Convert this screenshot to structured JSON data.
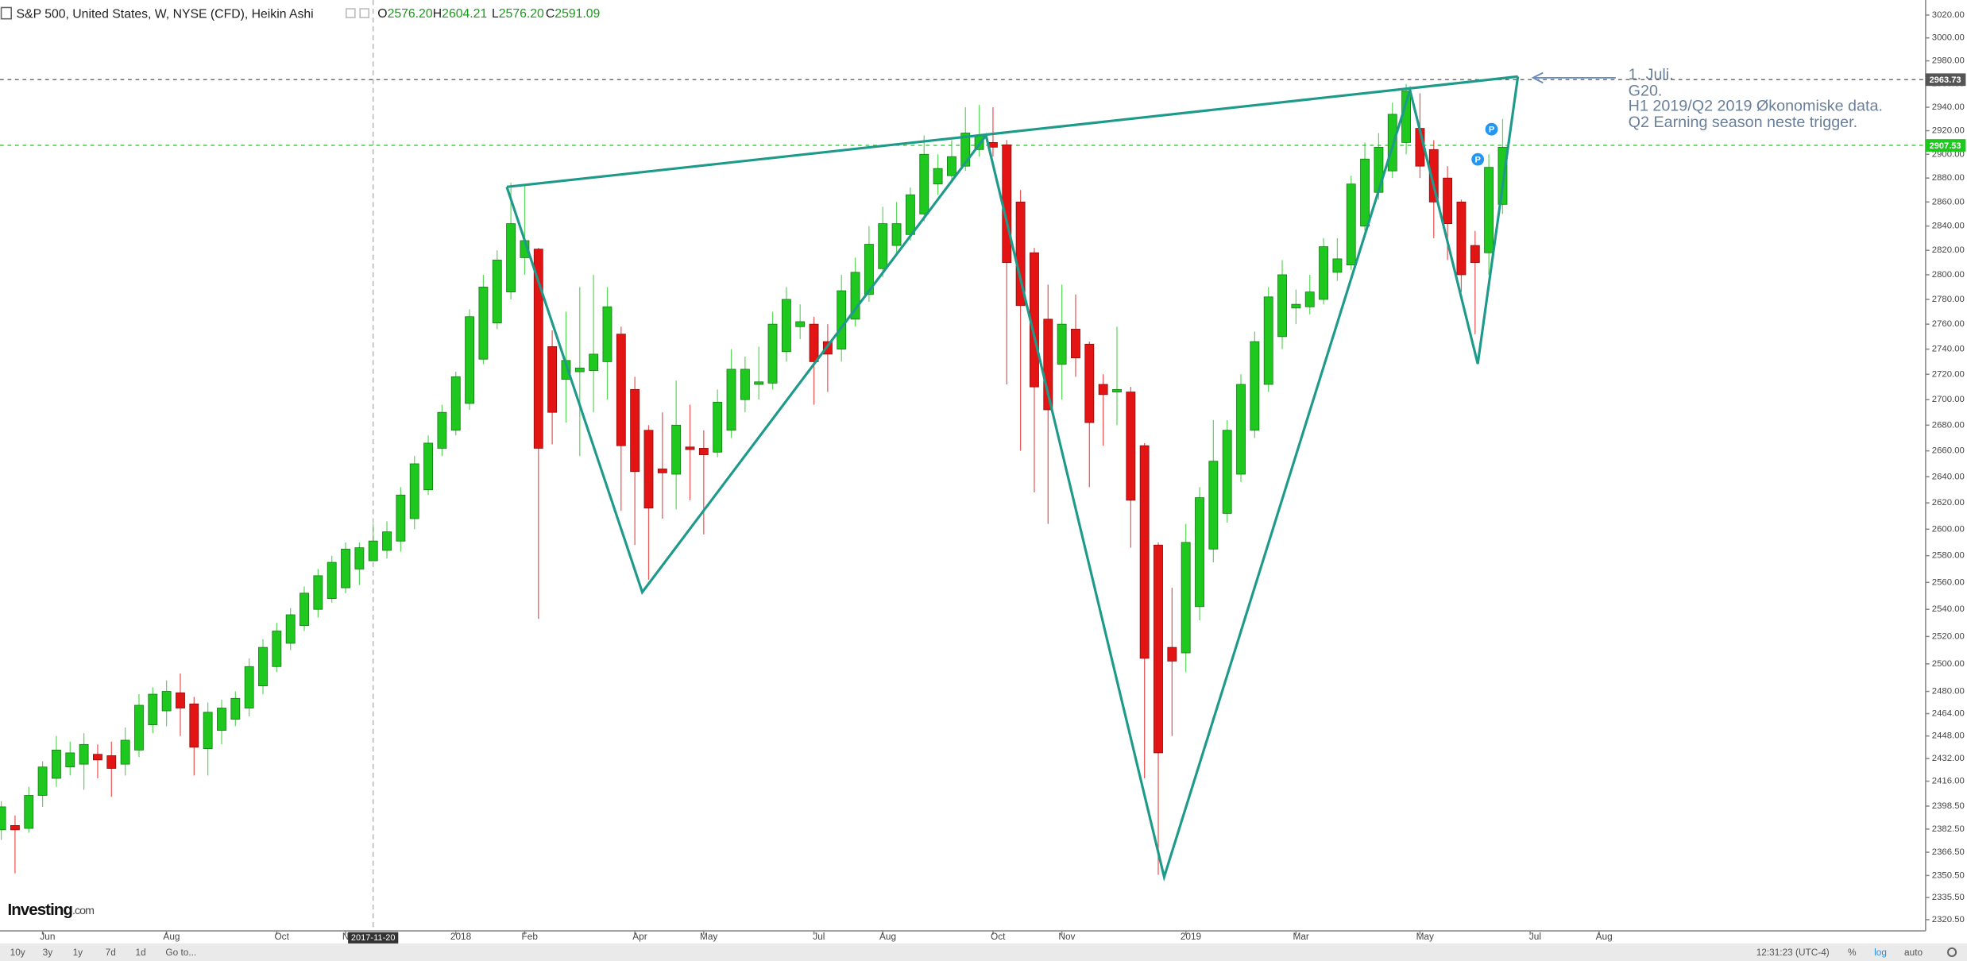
{
  "header": {
    "title": "S&P 500, United States, W, NYSE (CFD), Heikin Ashi",
    "readout": [
      {
        "label": "O",
        "text": "2576.20"
      },
      {
        "label": "H",
        "text": "2604.21"
      },
      {
        "label": "L",
        "text": "2576.20"
      },
      {
        "label": "C",
        "text": "2591.09"
      }
    ]
  },
  "chart_data": {
    "type": "candlestick",
    "log_scale": true,
    "grid": false,
    "up_color": "#1ec81e",
    "down_color": "#e31414",
    "x": [
      "2017-05-15",
      "2017-05-22",
      "2017-05-29",
      "2017-06-05",
      "2017-06-12",
      "2017-06-19",
      "2017-06-26",
      "2017-07-03",
      "2017-07-10",
      "2017-07-17",
      "2017-07-24",
      "2017-07-31",
      "2017-08-07",
      "2017-08-14",
      "2017-08-21",
      "2017-08-28",
      "2017-09-04",
      "2017-09-11",
      "2017-09-18",
      "2017-09-25",
      "2017-10-02",
      "2017-10-09",
      "2017-10-16",
      "2017-10-23",
      "2017-10-30",
      "2017-11-06",
      "2017-11-13",
      "2017-11-20",
      "2017-11-27",
      "2017-12-04",
      "2017-12-11",
      "2017-12-18",
      "2017-12-25",
      "2018-01-01",
      "2018-01-08",
      "2018-01-15",
      "2018-01-22",
      "2018-01-29",
      "2018-02-05",
      "2018-02-12",
      "2018-02-19",
      "2018-02-26",
      "2018-03-05",
      "2018-03-12",
      "2018-03-19",
      "2018-03-26",
      "2018-04-02",
      "2018-04-09",
      "2018-04-16",
      "2018-04-23",
      "2018-04-30",
      "2018-05-07",
      "2018-05-14",
      "2018-05-21",
      "2018-05-28",
      "2018-06-04",
      "2018-06-11",
      "2018-06-18",
      "2018-06-25",
      "2018-07-02",
      "2018-07-09",
      "2018-07-16",
      "2018-07-23",
      "2018-07-30",
      "2018-08-06",
      "2018-08-13",
      "2018-08-20",
      "2018-08-27",
      "2018-09-03",
      "2018-09-10",
      "2018-09-17",
      "2018-09-24",
      "2018-10-01",
      "2018-10-08",
      "2018-10-15",
      "2018-10-22",
      "2018-10-29",
      "2018-11-05",
      "2018-11-12",
      "2018-11-19",
      "2018-11-26",
      "2018-12-03",
      "2018-12-10",
      "2018-12-17",
      "2018-12-24",
      "2018-12-31",
      "2019-01-07",
      "2019-01-14",
      "2019-01-21",
      "2019-01-28",
      "2019-02-04",
      "2019-02-11",
      "2019-02-18",
      "2019-02-25",
      "2019-03-04",
      "2019-03-11",
      "2019-03-18",
      "2019-03-25",
      "2019-04-01",
      "2019-04-08",
      "2019-04-15",
      "2019-04-22",
      "2019-04-29",
      "2019-05-06",
      "2019-05-13",
      "2019-05-20",
      "2019-05-27",
      "2019-06-03",
      "2019-06-10",
      "2019-06-17"
    ],
    "open": [
      2382,
      2385,
      2383,
      2406,
      2418,
      2426,
      2428,
      2435,
      2434,
      2428,
      2438,
      2456,
      2466,
      2479,
      2471,
      2439,
      2452,
      2460,
      2468,
      2484,
      2498,
      2515,
      2528,
      2540,
      2548,
      2556,
      2570,
      2576.2,
      2584,
      2591,
      2608,
      2630,
      2662,
      2676,
      2697,
      2732,
      2761,
      2786,
      2814,
      2821,
      2742,
      2716,
      2722,
      2723,
      2730,
      2752,
      2708,
      2676,
      2646,
      2642,
      2663,
      2662,
      2659,
      2676,
      2700,
      2712,
      2713,
      2738,
      2758,
      2760,
      2746,
      2740,
      2764,
      2784,
      2805,
      2824,
      2833,
      2850,
      2875,
      2882,
      2890,
      2904,
      2910,
      2908,
      2860,
      2818,
      2764,
      2728,
      2756,
      2744,
      2712,
      2706,
      2706,
      2664,
      2588,
      2512,
      2508,
      2542,
      2585,
      2612,
      2642,
      2676,
      2712,
      2750,
      2773,
      2774,
      2780,
      2802,
      2808,
      2840,
      2868,
      2886,
      2910,
      2922,
      2904,
      2880,
      2860,
      2824,
      2818,
      2858
    ],
    "high": [
      2402,
      2392,
      2412,
      2430,
      2448,
      2444,
      2450,
      2442,
      2444,
      2454,
      2478,
      2483,
      2488,
      2493,
      2476,
      2472,
      2474,
      2480,
      2504,
      2518,
      2530,
      2541,
      2557,
      2570,
      2580,
      2590,
      2590,
      2604.21,
      2606,
      2632,
      2656,
      2672,
      2696,
      2722,
      2772,
      2800,
      2820,
      2876,
      2874,
      2822,
      2755,
      2770,
      2790,
      2800,
      2790,
      2758,
      2718,
      2680,
      2690,
      2715,
      2696,
      2676,
      2708,
      2740,
      2734,
      2742,
      2770,
      2790,
      2776,
      2766,
      2760,
      2800,
      2814,
      2840,
      2856,
      2860,
      2872,
      2916,
      2900,
      2912,
      2940,
      2942,
      2940,
      2912,
      2870,
      2822,
      2792,
      2792,
      2784,
      2746,
      2720,
      2758,
      2710,
      2666,
      2590,
      2556,
      2604,
      2632,
      2684,
      2684,
      2720,
      2754,
      2790,
      2812,
      2788,
      2800,
      2830,
      2830,
      2882,
      2910,
      2918,
      2944,
      2960,
      2952,
      2912,
      2890,
      2862,
      2836,
      2900,
      2930
    ],
    "low": [
      2375,
      2352,
      2380,
      2398,
      2412,
      2420,
      2410,
      2418,
      2405,
      2420,
      2433,
      2450,
      2455,
      2448,
      2420,
      2420,
      2442,
      2455,
      2462,
      2478,
      2494,
      2510,
      2524,
      2534,
      2545,
      2552,
      2558,
      2576.2,
      2578,
      2583,
      2600,
      2626,
      2656,
      2672,
      2692,
      2728,
      2756,
      2780,
      2800,
      2533,
      2665,
      2682,
      2656,
      2690,
      2700,
      2614,
      2588,
      2562,
      2608,
      2615,
      2622,
      2596,
      2655,
      2670,
      2690,
      2700,
      2708,
      2730,
      2748,
      2696,
      2706,
      2730,
      2758,
      2778,
      2798,
      2818,
      2828,
      2844,
      2866,
      2876,
      2886,
      2898,
      2898,
      2712,
      2660,
      2628,
      2604,
      2700,
      2718,
      2632,
      2664,
      2680,
      2586,
      2418,
      2351,
      2448,
      2494,
      2532,
      2575,
      2605,
      2636,
      2670,
      2706,
      2740,
      2760,
      2768,
      2776,
      2795,
      2804,
      2836,
      2862,
      2880,
      2900,
      2880,
      2830,
      2812,
      2786,
      2752,
      2800,
      2850
    ],
    "close": [
      2398,
      2382,
      2406,
      2426,
      2438,
      2436,
      2442,
      2431,
      2425,
      2445,
      2470,
      2478,
      2480,
      2468,
      2440,
      2465,
      2468,
      2475,
      2498,
      2512,
      2524,
      2536,
      2552,
      2565,
      2575,
      2585,
      2586,
      2591.09,
      2598,
      2626,
      2650,
      2666,
      2690,
      2718,
      2766,
      2790,
      2812,
      2842,
      2828,
      2662,
      2690,
      2731,
      2725,
      2736,
      2774,
      2664,
      2644,
      2616,
      2643,
      2680,
      2661,
      2657,
      2698,
      2724,
      2724,
      2714,
      2760,
      2780,
      2762,
      2730,
      2736,
      2787,
      2802,
      2825,
      2842,
      2842,
      2866,
      2900,
      2888,
      2898,
      2918,
      2916,
      2906,
      2810,
      2775,
      2710,
      2692,
      2760,
      2733,
      2682,
      2704,
      2708,
      2622,
      2504,
      2436,
      2502,
      2590,
      2624,
      2652,
      2676,
      2712,
      2746,
      2782,
      2800,
      2776,
      2786,
      2823,
      2813,
      2875,
      2896,
      2906,
      2934,
      2954,
      2890,
      2860,
      2842,
      2800,
      2810,
      2889,
      2906
    ],
    "ylim": [
      2312.9,
      3033.3
    ],
    "yticks": [
      {
        "value": 3020,
        "label": "3020.00"
      },
      {
        "value": 3000,
        "label": "3000.00"
      },
      {
        "value": 2980,
        "label": "2980.00"
      },
      {
        "value": 2960,
        "label": "2960.00"
      },
      {
        "value": 2940,
        "label": "2940.00"
      },
      {
        "value": 2920,
        "label": "2920.00"
      },
      {
        "value": 2900,
        "label": "2900.00"
      },
      {
        "value": 2880,
        "label": "2880.00"
      },
      {
        "value": 2860,
        "label": "2860.00"
      },
      {
        "value": 2840,
        "label": "2840.00"
      },
      {
        "value": 2820,
        "label": "2820.00"
      },
      {
        "value": 2800,
        "label": "2800.00"
      },
      {
        "value": 2780,
        "label": "2780.00"
      },
      {
        "value": 2760,
        "label": "2760.00"
      },
      {
        "value": 2740,
        "label": "2740.00"
      },
      {
        "value": 2720,
        "label": "2720.00"
      },
      {
        "value": 2700,
        "label": "2700.00"
      },
      {
        "value": 2680,
        "label": "2680.00"
      },
      {
        "value": 2660,
        "label": "2660.00"
      },
      {
        "value": 2640,
        "label": "2640.00"
      },
      {
        "value": 2620,
        "label": "2620.00"
      },
      {
        "value": 2600,
        "label": "2600.00"
      },
      {
        "value": 2580,
        "label": "2580.00"
      },
      {
        "value": 2560,
        "label": "2560.00"
      },
      {
        "value": 2540,
        "label": "2540.00"
      },
      {
        "value": 2520,
        "label": "2520.00"
      },
      {
        "value": 2500,
        "label": "2500.00"
      },
      {
        "value": 2480,
        "label": "2480.00"
      },
      {
        "value": 2464,
        "label": "2464.00"
      },
      {
        "value": 2448,
        "label": "2448.00"
      },
      {
        "value": 2432,
        "label": "2432.00"
      },
      {
        "value": 2416,
        "label": "2416.00"
      },
      {
        "value": 2398.5,
        "label": "2398.50"
      },
      {
        "value": 2382.5,
        "label": "2382.50"
      },
      {
        "value": 2366.5,
        "label": "2366.50"
      },
      {
        "value": 2350.5,
        "label": "2350.50"
      },
      {
        "value": 2335.5,
        "label": "2335.50"
      },
      {
        "value": 2320.5,
        "label": "2320.50"
      }
    ],
    "xticks": [
      {
        "value": "2017-06-05",
        "label": "Jun"
      },
      {
        "value": "2017-08-07",
        "label": "Aug"
      },
      {
        "value": "2017-10-02",
        "label": "Oct"
      },
      {
        "value": "2017-11-06",
        "label": "Nov"
      },
      {
        "value": "2018-01-01",
        "label": "2018"
      },
      {
        "value": "2018-02-05",
        "label": "Feb"
      },
      {
        "value": "2018-04-02",
        "label": "Apr"
      },
      {
        "value": "2018-05-07",
        "label": "May"
      },
      {
        "value": "2018-07-02",
        "label": "Jul"
      },
      {
        "value": "2018-08-06",
        "label": "Aug"
      },
      {
        "value": "2018-10-01",
        "label": "Oct"
      },
      {
        "value": "2018-11-05",
        "label": "Nov"
      },
      {
        "value": "2019-01-07",
        "label": "2019"
      },
      {
        "value": "2019-03-04",
        "label": "Mar"
      },
      {
        "value": "2019-05-06",
        "label": "May"
      },
      {
        "value": "2019-07-01",
        "label": "Jul"
      },
      {
        "value": "2019-08-05",
        "label": "Aug"
      }
    ],
    "crosshair_x": "2017-11-20",
    "price_lines": [
      {
        "value": 2963.73,
        "color": "#555555"
      },
      {
        "value": 2907.53,
        "color": "#1ec81e"
      }
    ],
    "annotations": [
      "1. Juli.",
      "G20.",
      "H1 2019/Q2 2019 Økonomiske data.",
      "Q2 Earning season neste trigger."
    ],
    "event_markers": [
      "P",
      "P"
    ]
  },
  "logo": {
    "brand": "Investing",
    "suffix": ".com"
  },
  "toolbar": {
    "ranges": [
      "10y",
      "3y",
      "1y",
      "7d",
      "1d",
      "Go to..."
    ],
    "clock": "12:31:23 (UTC-4)",
    "options": [
      "%",
      "log",
      "auto"
    ]
  }
}
